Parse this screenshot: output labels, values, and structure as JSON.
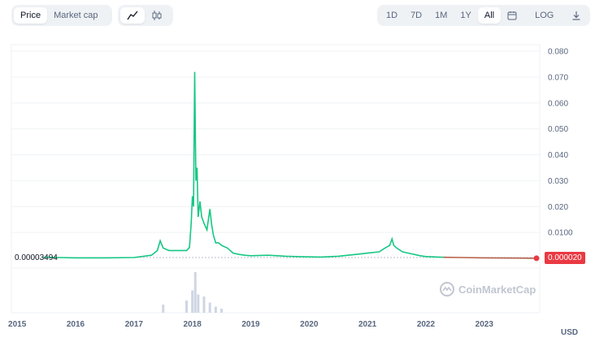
{
  "toolbar": {
    "metric_tabs": [
      {
        "label": "Price",
        "active": true
      },
      {
        "label": "Market cap",
        "active": false
      }
    ],
    "chart_types": [
      {
        "icon": "line-chart-icon",
        "active": true
      },
      {
        "icon": "candlestick-icon",
        "active": false
      }
    ],
    "ranges": [
      {
        "label": "1D",
        "active": false
      },
      {
        "label": "7D",
        "active": false
      },
      {
        "label": "1M",
        "active": false
      },
      {
        "label": "1Y",
        "active": false
      },
      {
        "label": "All",
        "active": true
      }
    ],
    "calendar_icon": "calendar-icon",
    "log_label": "LOG",
    "download_icon": "download-icon"
  },
  "chart": {
    "current_price_label": "0.00003494",
    "last_price_label": "0.000020",
    "currency_label": "USD",
    "watermark": "CoinMarketCap",
    "colors": {
      "line_up": "#16c784",
      "line_recent": "#b5614a",
      "last_price_bg": "#ea3943",
      "volume": "#cfd6e4",
      "grid": "#eff2f5"
    }
  },
  "chart_data": {
    "type": "line",
    "xlabel": "",
    "ylabel": "",
    "y_ticks": [
      "0.080",
      "0.070",
      "0.060",
      "0.050",
      "0.040",
      "0.030",
      "0.020",
      "0.0100"
    ],
    "x_ticks": [
      "2015",
      "2016",
      "2017",
      "2018",
      "2019",
      "2020",
      "2021",
      "2022",
      "2023"
    ],
    "ylim": [
      0,
      0.08
    ],
    "xlim": [
      2014.9,
      2023.95
    ],
    "grid": true,
    "series": [
      {
        "x": [
          2015.45,
          2015.7,
          2016.0,
          2016.5,
          2017.0,
          2017.3,
          2017.4,
          2017.45,
          2017.5,
          2017.6,
          2017.75,
          2017.9,
          2017.95,
          2017.98,
          2018.0,
          2018.02,
          2018.04,
          2018.06,
          2018.08,
          2018.1,
          2018.13,
          2018.16,
          2018.2,
          2018.25,
          2018.3,
          2018.33,
          2018.36,
          2018.4,
          2018.45,
          2018.5,
          2018.6,
          2018.7,
          2018.8,
          2018.9,
          2019.0,
          2019.3,
          2019.6,
          2019.9,
          2020.2,
          2020.5,
          2020.8,
          2021.0,
          2021.2,
          2021.3,
          2021.38,
          2021.42,
          2021.45,
          2021.5,
          2021.6,
          2021.7,
          2021.8,
          2021.9,
          2022.0,
          2022.3,
          2022.6,
          2023.0,
          2023.5,
          2023.85
        ],
        "values": [
          0.0004,
          0.0003,
          0.0002,
          0.0002,
          0.0003,
          0.0012,
          0.003,
          0.0068,
          0.004,
          0.003,
          0.003,
          0.003,
          0.0042,
          0.0135,
          0.024,
          0.02,
          0.072,
          0.03,
          0.035,
          0.016,
          0.022,
          0.016,
          0.0135,
          0.011,
          0.019,
          0.013,
          0.009,
          0.006,
          0.006,
          0.005,
          0.004,
          0.002,
          0.0015,
          0.0012,
          0.001,
          0.0012,
          0.0008,
          0.0006,
          0.0005,
          0.0008,
          0.0015,
          0.002,
          0.0025,
          0.004,
          0.005,
          0.0075,
          0.005,
          0.004,
          0.0025,
          0.002,
          0.0015,
          0.001,
          0.0007,
          0.0004,
          0.0003,
          0.0002,
          0.0001,
          2e-05
        ]
      }
    ],
    "volume_x": [
      2017.5,
      2017.9,
      2018.0,
      2018.05,
      2018.1,
      2018.2,
      2018.3,
      2018.4,
      2018.5
    ],
    "volume": [
      0.2,
      0.3,
      0.55,
      1.0,
      0.45,
      0.4,
      0.25,
      0.15,
      0.1
    ]
  }
}
